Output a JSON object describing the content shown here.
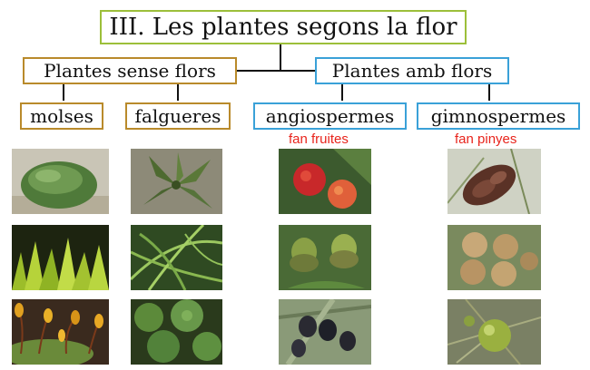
{
  "title": "III. Les plantes segons la flor",
  "categories": {
    "sense_flors": "Plantes sense flors",
    "amb_flors": "Plantes amb flors"
  },
  "groups": {
    "molses": "molses",
    "falgueres": "falgueres",
    "angiospermes": "angiospermes",
    "gimnospermes": "gimnospermes"
  },
  "notes": {
    "angiospermes": "fan fruites",
    "gimnospermes": "fan pinyes"
  },
  "colors": {
    "title_border": "#9cbf3a",
    "no_flower_border": "#b98a2b",
    "flower_border": "#3aa1d8",
    "note_text": "#e8241c"
  },
  "photos": {
    "molses": [
      "moss-cushion-photo",
      "moss-fronds-photo",
      "moss-capsules-photo"
    ],
    "falgueres": [
      "fern-rosette-photo",
      "fern-fronds-photo",
      "fern-leaves-photo"
    ],
    "angiospermes": [
      "strawberry-tree-fruit-photo",
      "acorns-photo",
      "olives-photo"
    ],
    "gimnospermes": [
      "pine-cone-photo",
      "cypress-cones-photo",
      "juniper-berry-photo"
    ]
  }
}
